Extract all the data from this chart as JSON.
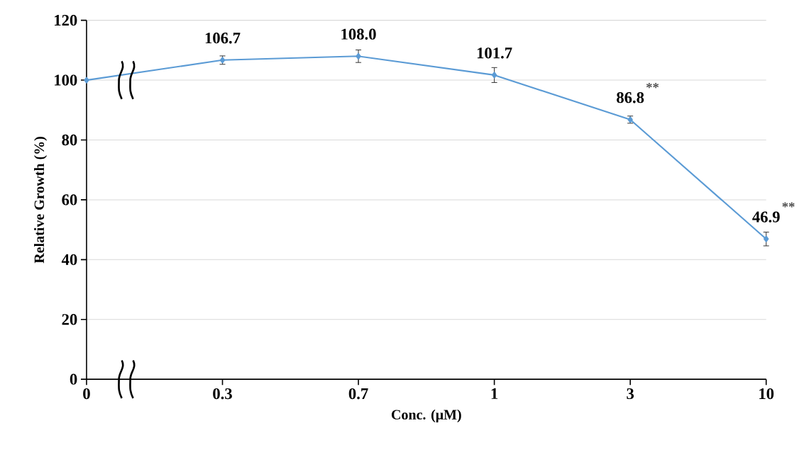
{
  "chart_data": {
    "type": "line",
    "xlabel": "Conc. (μM)",
    "ylabel": "Relative Growth (%)",
    "categories": [
      "0",
      "0.3",
      "0.7",
      "1",
      "3",
      "10"
    ],
    "values": [
      100,
      106.7,
      108.0,
      101.7,
      86.8,
      46.9
    ],
    "errors": [
      null,
      1.4,
      2.1,
      2.5,
      1.2,
      2.3
    ],
    "value_labels": [
      null,
      "106.7",
      "108.0",
      "101.7",
      "86.8",
      "46.9"
    ],
    "color": "#5b9bd5",
    "marker": "diamond",
    "line_style": "solid",
    "ylim": [
      0,
      120
    ],
    "yticks": [
      0,
      20,
      40,
      60,
      80,
      100,
      120
    ],
    "grid": "y",
    "annotations": [
      {
        "text": "**",
        "x": "3",
        "y": 86.8
      },
      {
        "text": "**",
        "x": "10",
        "y": 46.9
      }
    ]
  }
}
